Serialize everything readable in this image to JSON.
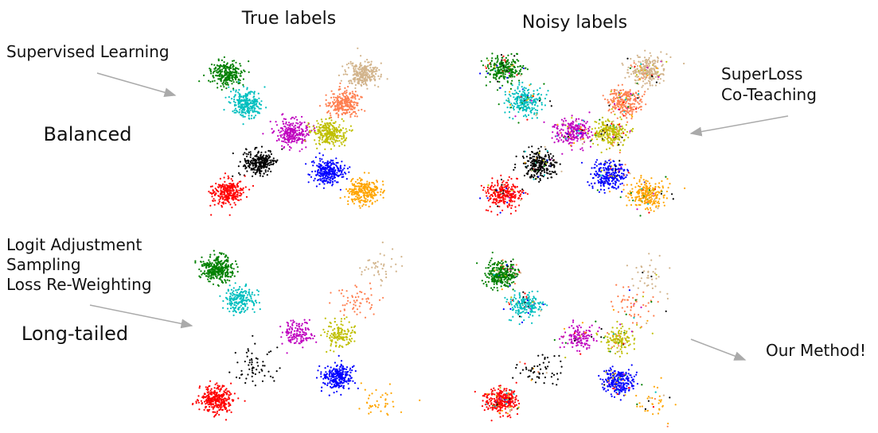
{
  "panels": {
    "true_labels": "True labels",
    "noisy_labels": "Noisy labels"
  },
  "rows": {
    "balanced": "Balanced",
    "long_tailed": "Long-tailed"
  },
  "annotations": {
    "balanced_true": [
      "Supervised Learning"
    ],
    "balanced_noisy": [
      "SuperLoss",
      "Co-Teaching"
    ],
    "long_tailed_true": [
      "Logit Adjustment",
      "Sampling",
      "Loss Re-Weighting"
    ],
    "long_tailed_noisy": [
      "Our Method!"
    ]
  }
}
